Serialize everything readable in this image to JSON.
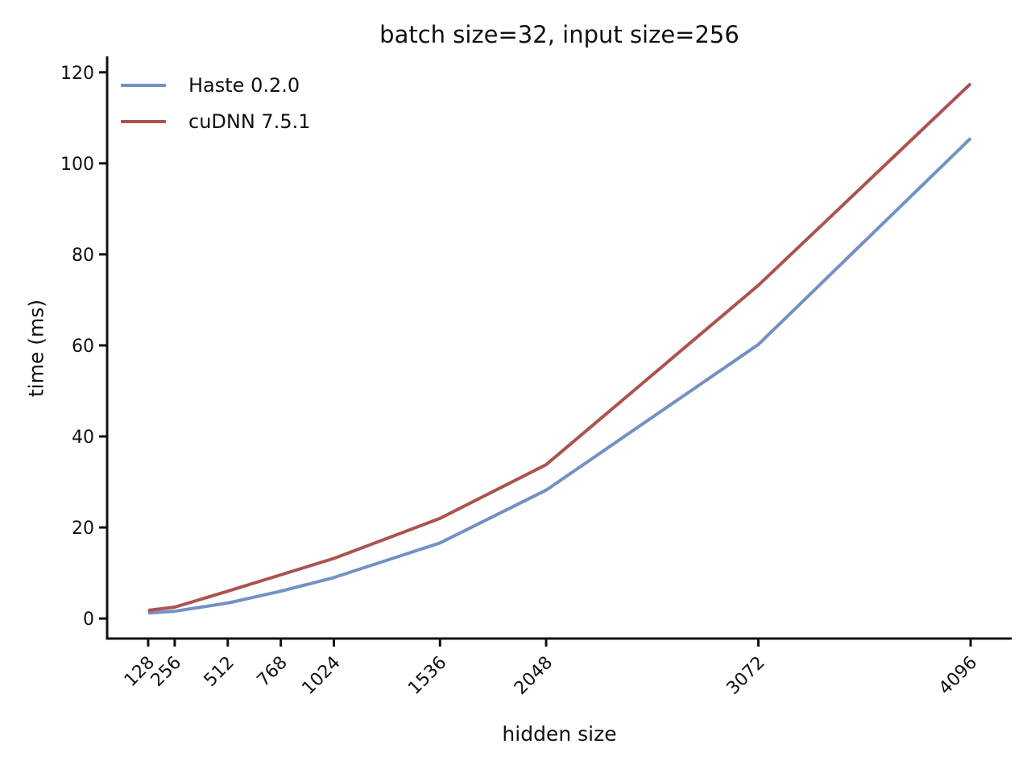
{
  "figure": {
    "kind": "matplotlib-line-figure"
  },
  "chart_data": {
    "type": "line",
    "title": "batch size=32, input size=256",
    "xlabel": "hidden size",
    "ylabel": "time (ms)",
    "x": [
      128,
      256,
      512,
      768,
      1024,
      1536,
      2048,
      3072,
      4096
    ],
    "series": [
      {
        "name": "Haste 0.2.0",
        "color": "#7291c4",
        "values": [
          1.2,
          1.6,
          3.4,
          6.0,
          9.0,
          16.6,
          28.2,
          60.2,
          105.5
        ]
      },
      {
        "name": "cuDNN 7.5.1",
        "color": "#ab5351",
        "values": [
          1.8,
          2.5,
          6.0,
          9.6,
          13.2,
          22.0,
          33.8,
          73.2,
          117.5
        ]
      }
    ],
    "xticks": [
      128,
      256,
      512,
      768,
      1024,
      1536,
      2048,
      3072,
      4096
    ],
    "xtick_labels": [
      "128",
      "256",
      "512",
      "768",
      "1024",
      "1536",
      "2048",
      "3072",
      "4096"
    ],
    "yticks": [
      0,
      20,
      40,
      60,
      80,
      100,
      120
    ],
    "ytick_labels": [
      "0",
      "20",
      "40",
      "60",
      "80",
      "100",
      "120"
    ],
    "xlim": [
      -70,
      4294
    ],
    "ylim": [
      -4.4,
      123.5
    ],
    "grid": false,
    "legend_position": "upper left",
    "axis_color": "#111111",
    "line_width": 4
  }
}
